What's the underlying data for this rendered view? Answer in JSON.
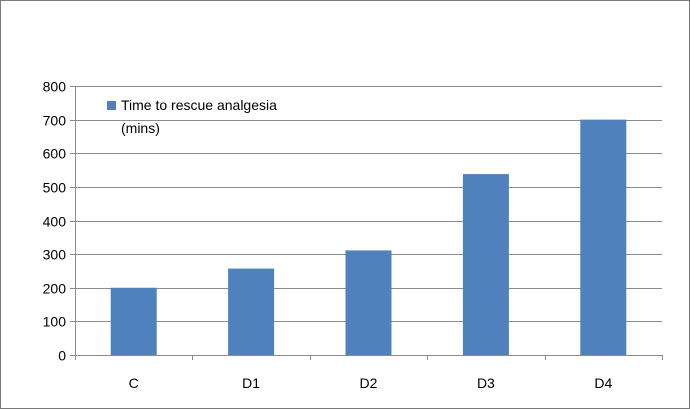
{
  "chart_data": {
    "type": "bar",
    "categories": [
      "C",
      "D1",
      "D2",
      "D3",
      "D4"
    ],
    "series": [
      {
        "name": "Time to rescue analgesia (mins)",
        "values": [
          200,
          257,
          311,
          538,
          700
        ]
      }
    ],
    "legend_lines": [
      "Time to rescue analgesia",
      "(mins)"
    ],
    "xlabel": "",
    "ylabel": "",
    "ylim": [
      0,
      800
    ],
    "yticks": [
      0,
      100,
      200,
      300,
      400,
      500,
      600,
      700,
      800
    ],
    "grid": true,
    "legend_position": "top-left",
    "bar_color": "#4f81bd"
  }
}
